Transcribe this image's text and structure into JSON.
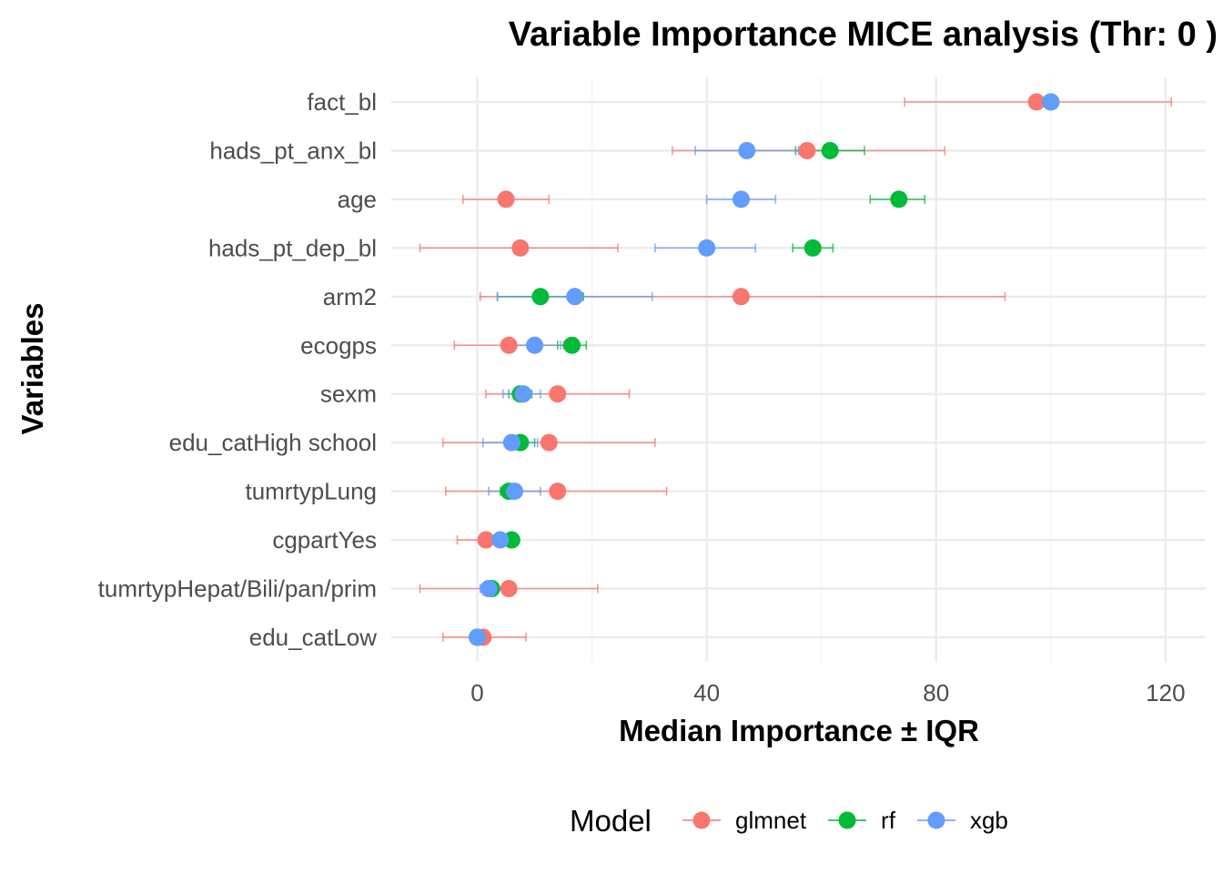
{
  "chart_data": {
    "type": "scatter",
    "title": "Variable Importance MICE analysis (Thr: 0 )",
    "xlabel": "Median Importance ± IQR",
    "ylabel": "Variables",
    "xlim": [
      -15,
      127
    ],
    "xticks": [
      0,
      40,
      80,
      120
    ],
    "grid": true,
    "legend": {
      "title": "Model",
      "placement": "bottom"
    },
    "categories": [
      "fact_bl",
      "hads_pt_anx_bl",
      "age",
      "hads_pt_dep_bl",
      "arm2",
      "ecogps",
      "sexm",
      "edu_catHigh school",
      "tumrtypLung",
      "cgpartYes",
      "tumrtypHepat/Bili/pan/prim",
      "edu_catLow"
    ],
    "series": [
      {
        "name": "glmnet",
        "color": "#F8766D",
        "points": [
          {
            "median": 97.5,
            "low": 74.5,
            "high": 121
          },
          {
            "median": 57.5,
            "low": 34,
            "high": 81.5
          },
          {
            "median": 5,
            "low": -2.5,
            "high": 12.5
          },
          {
            "median": 7.5,
            "low": -10,
            "high": 24.5
          },
          {
            "median": 46,
            "low": 0.5,
            "high": 92
          },
          {
            "median": 5.5,
            "low": -4,
            "high": 15
          },
          {
            "median": 14,
            "low": 1.5,
            "high": 26.5
          },
          {
            "median": 12.5,
            "low": -6,
            "high": 31
          },
          {
            "median": 14,
            "low": -5.5,
            "high": 33
          },
          {
            "median": 1.5,
            "low": -3.5,
            "high": 6
          },
          {
            "median": 5.5,
            "low": -10,
            "high": 21
          },
          {
            "median": 1,
            "low": -6,
            "high": 8.5
          }
        ]
      },
      {
        "name": "rf",
        "color": "#00BA38",
        "points": [
          {
            "median": 100,
            "low": 99,
            "high": 101
          },
          {
            "median": 61.5,
            "low": 55.5,
            "high": 67.5
          },
          {
            "median": 73.5,
            "low": 68.5,
            "high": 78
          },
          {
            "median": 58.5,
            "low": 55,
            "high": 62
          },
          {
            "median": 11,
            "low": 3.5,
            "high": 18.5
          },
          {
            "median": 16.5,
            "low": 14,
            "high": 19
          },
          {
            "median": 7.5,
            "low": 5.5,
            "high": 9.5
          },
          {
            "median": 7.5,
            "low": 5.5,
            "high": 10
          },
          {
            "median": 5.5,
            "low": 4,
            "high": 7
          },
          {
            "median": 6,
            "low": 5.5,
            "high": 6.5
          },
          {
            "median": 2.5,
            "low": 1.5,
            "high": 3.5
          },
          {
            "median": 0,
            "low": 0,
            "high": 0
          }
        ]
      },
      {
        "name": "xgb",
        "color": "#619CFF",
        "points": [
          {
            "median": 100,
            "low": 99.5,
            "high": 100.5
          },
          {
            "median": 47,
            "low": 38,
            "high": 56
          },
          {
            "median": 46,
            "low": 40,
            "high": 52
          },
          {
            "median": 40,
            "low": 31,
            "high": 48.5
          },
          {
            "median": 17,
            "low": 3.5,
            "high": 30.5
          },
          {
            "median": 10,
            "low": 5.5,
            "high": 14.5
          },
          {
            "median": 8,
            "low": 4.5,
            "high": 11
          },
          {
            "median": 6,
            "low": 1,
            "high": 10.5
          },
          {
            "median": 6.5,
            "low": 2,
            "high": 11
          },
          {
            "median": 4,
            "low": 3,
            "high": 5
          },
          {
            "median": 2,
            "low": 0.5,
            "high": 3.5
          },
          {
            "median": 0,
            "low": -0.5,
            "high": 0.5
          }
        ]
      }
    ]
  }
}
